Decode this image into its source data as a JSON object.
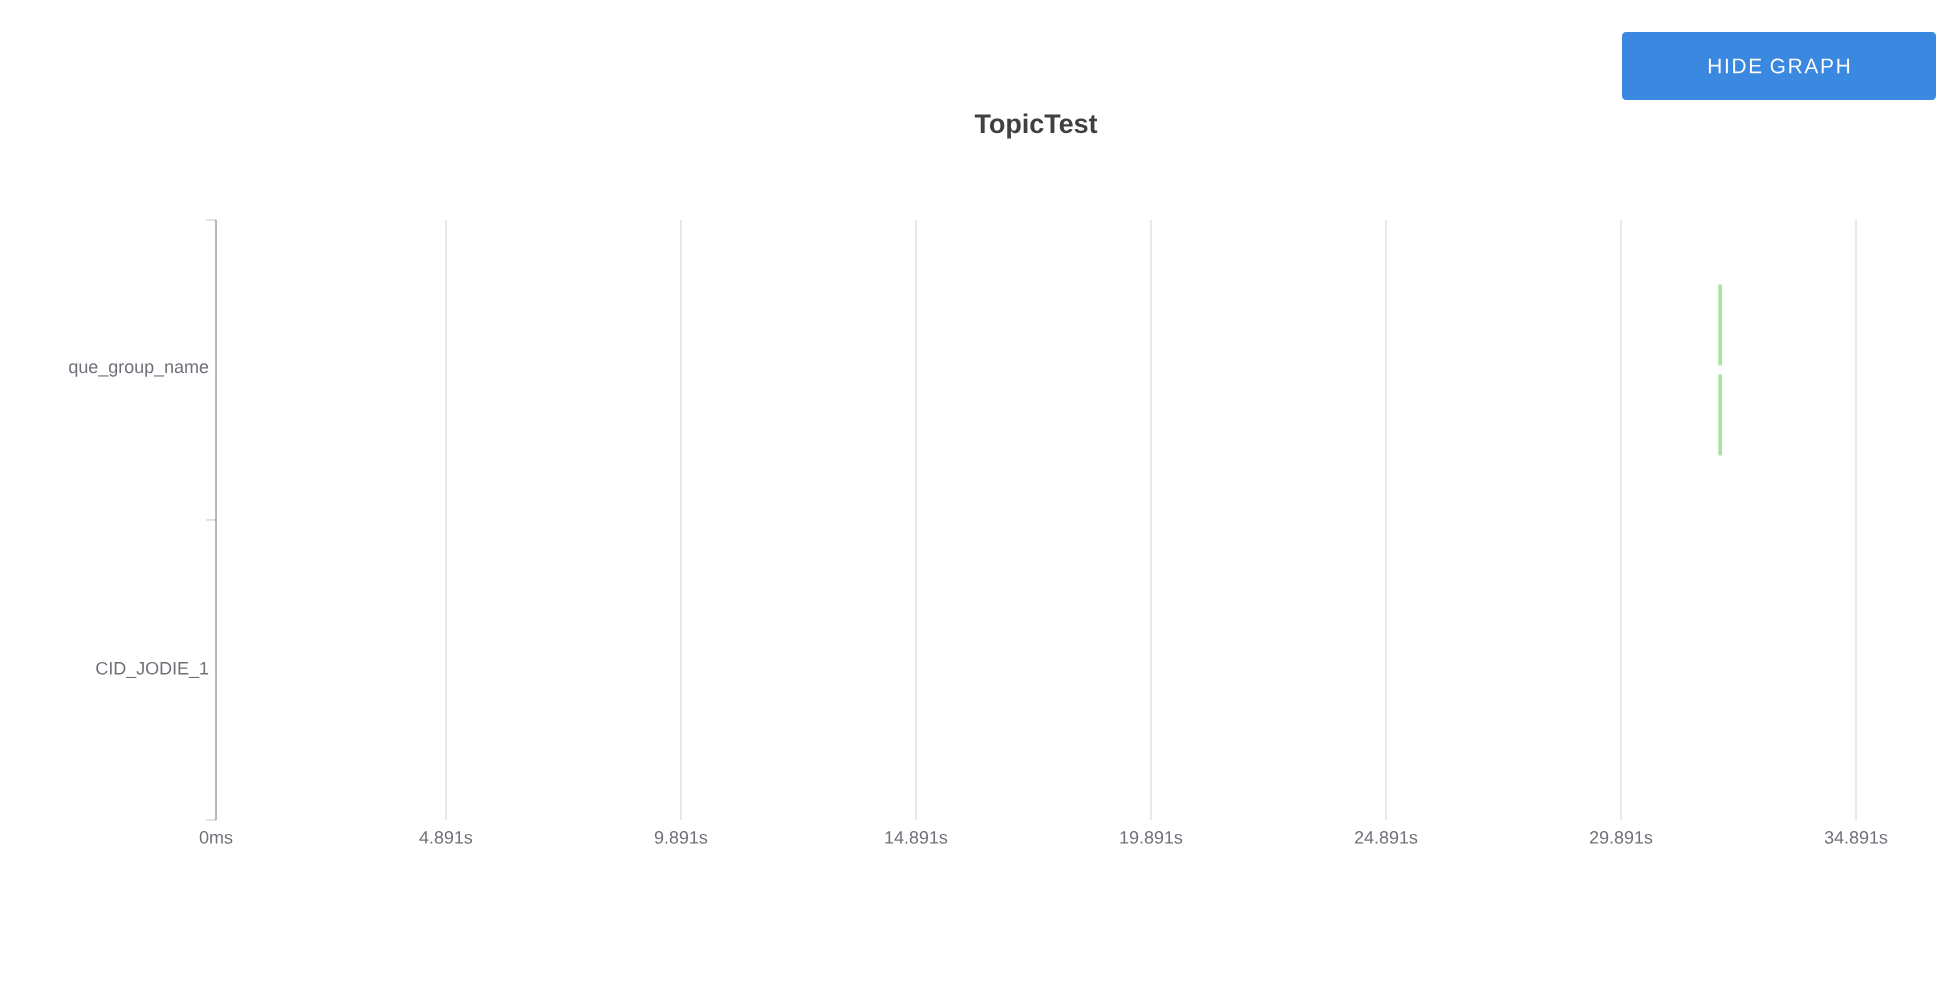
{
  "chart_data": {
    "type": "bar",
    "orientation": "horizontal",
    "title": "TopicTest",
    "categories": [
      "que_group_name",
      "CID_JODIE_1"
    ],
    "series": [
      {
        "color": "#a8e4a0",
        "values": [
          0.08,
          null
        ],
        "base": [
          31.96,
          null
        ]
      },
      {
        "color": "#a8e4a0",
        "values": [
          0.08,
          null
        ],
        "base": [
          31.96,
          null
        ]
      }
    ],
    "xlim": [
      0,
      34.891
    ],
    "xticks": [
      {
        "value": 0,
        "label": "0ms"
      },
      {
        "value": 4.891,
        "label": "4.891s"
      },
      {
        "value": 9.891,
        "label": "9.891s"
      },
      {
        "value": 14.891,
        "label": "14.891s"
      },
      {
        "value": 19.891,
        "label": "19.891s"
      },
      {
        "value": 24.891,
        "label": "24.891s"
      },
      {
        "value": 29.891,
        "label": "29.891s"
      },
      {
        "value": 34.891,
        "label": "34.891s"
      }
    ],
    "grid": "x",
    "annotations": [
      "HIDE GRAPH"
    ]
  }
}
